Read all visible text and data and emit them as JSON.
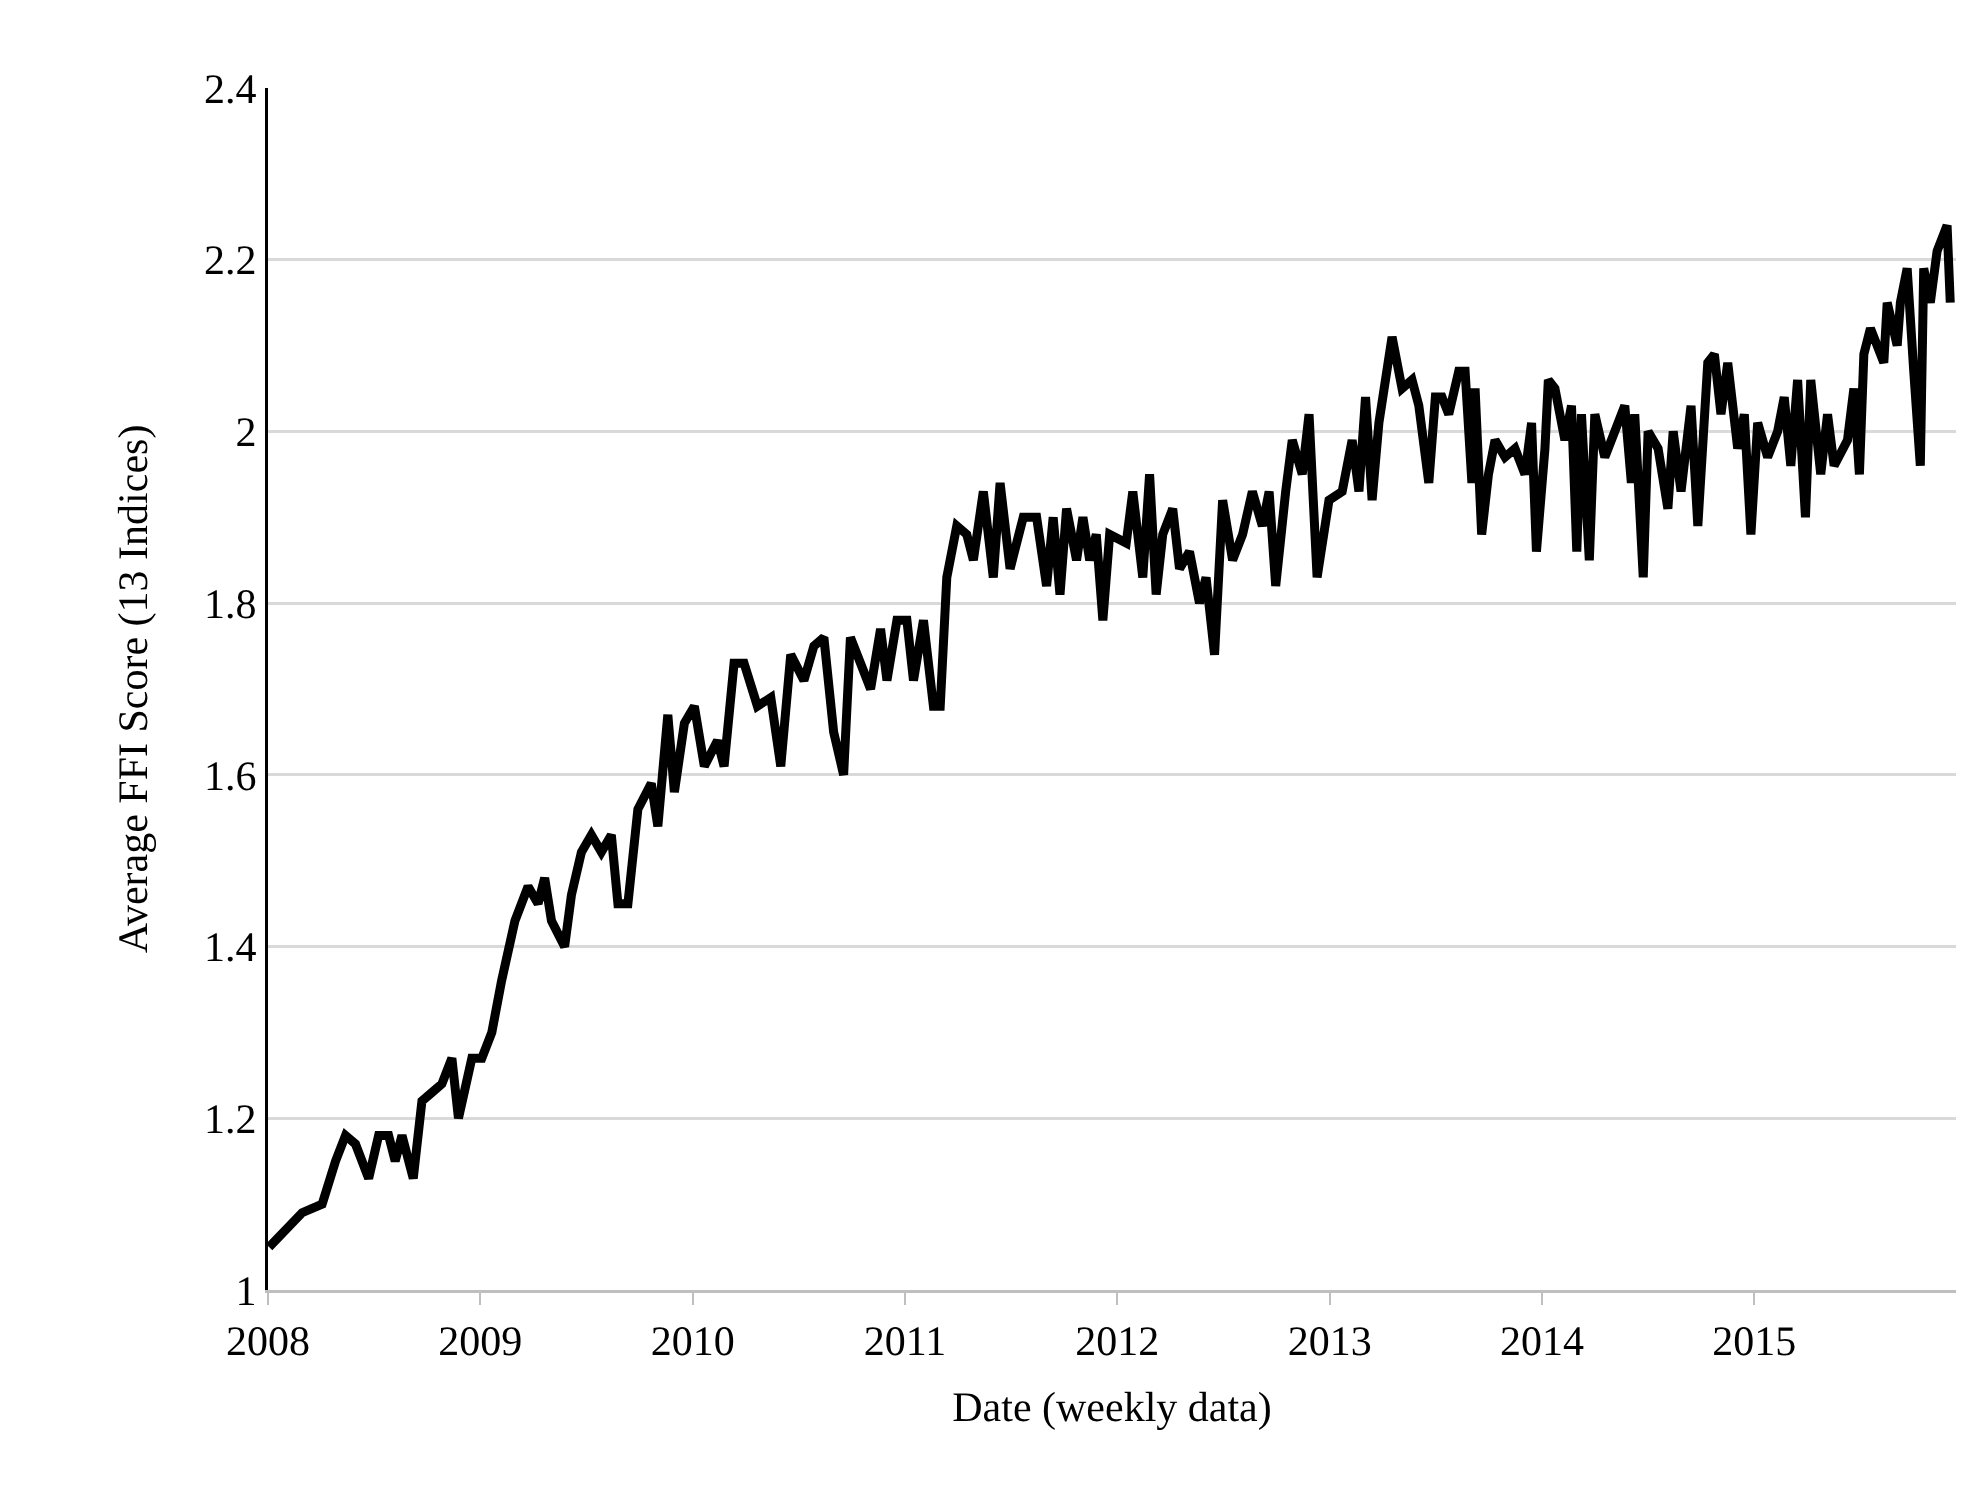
{
  "chart_data": {
    "type": "line",
    "xlabel": "Date (weekly data)",
    "ylabel": "Average FFI Score (13 Indices)",
    "x": [
      2008.005,
      2008.161,
      2008.255,
      2008.318,
      2008.365,
      2008.412,
      2008.474,
      2008.521,
      2008.568,
      2008.599,
      2008.631,
      2008.684,
      2008.725,
      2008.772,
      2008.819,
      2008.866,
      2008.897,
      2008.96,
      2009.007,
      2009.054,
      2009.1,
      2009.163,
      2009.225,
      2009.272,
      2009.303,
      2009.335,
      2009.397,
      2009.429,
      2009.476,
      2009.523,
      2009.57,
      2009.617,
      2009.648,
      2009.695,
      2009.742,
      2009.805,
      2009.836,
      2009.883,
      2009.914,
      2009.961,
      2010.008,
      2010.055,
      2010.117,
      2010.148,
      2010.195,
      2010.242,
      2010.305,
      2010.368,
      2010.415,
      2010.462,
      2010.524,
      2010.571,
      2010.618,
      2010.664,
      2010.711,
      2010.743,
      2010.838,
      2010.885,
      2010.915,
      2010.962,
      2011.009,
      2011.04,
      2011.087,
      2011.134,
      2011.166,
      2011.197,
      2011.244,
      2011.291,
      2011.322,
      2011.369,
      2011.416,
      2011.448,
      2011.495,
      2011.557,
      2011.62,
      2011.667,
      2011.698,
      2011.73,
      2011.761,
      2011.808,
      2011.838,
      2011.87,
      2011.901,
      2011.932,
      2011.964,
      2012.042,
      2012.073,
      2012.12,
      2012.152,
      2012.183,
      2012.214,
      2012.261,
      2012.293,
      2012.34,
      2012.387,
      2012.418,
      2012.458,
      2012.496,
      2012.543,
      2012.59,
      2012.636,
      2012.683,
      2012.715,
      2012.746,
      2012.793,
      2012.824,
      2012.871,
      2012.903,
      2012.941,
      2012.997,
      2013.059,
      2013.106,
      2013.138,
      2013.169,
      2013.2,
      2013.232,
      2013.294,
      2013.341,
      2013.388,
      2013.42,
      2013.467,
      2013.498,
      2013.529,
      2013.561,
      2013.608,
      2013.638,
      2013.67,
      2013.685,
      2013.716,
      2013.748,
      2013.779,
      2013.826,
      2013.873,
      2013.92,
      2013.951,
      2013.974,
      2014.014,
      2014.03,
      2014.061,
      2014.108,
      2014.139,
      2014.164,
      2014.186,
      2014.223,
      2014.249,
      2014.296,
      2014.343,
      2014.39,
      2014.421,
      2014.437,
      2014.477,
      2014.5,
      2014.547,
      2014.593,
      2014.618,
      2014.655,
      2014.702,
      2014.734,
      2014.781,
      2014.812,
      2014.843,
      2014.875,
      2014.922,
      2014.953,
      2014.984,
      2015.016,
      2015.063,
      2015.11,
      2015.141,
      2015.172,
      2015.204,
      2015.241,
      2015.266,
      2015.313,
      2015.345,
      2015.376,
      2015.439,
      2015.469,
      2015.495,
      2015.516,
      2015.547,
      2015.61,
      2015.626,
      2015.673,
      2015.688,
      2015.72,
      2015.751,
      2015.782,
      2015.798,
      2015.829,
      2015.861,
      2015.908,
      2015.923
    ],
    "series": [
      {
        "color": "#000000",
        "values": [
          1.05,
          1.09,
          1.1,
          1.15,
          1.18,
          1.17,
          1.13,
          1.18,
          1.18,
          1.15,
          1.18,
          1.13,
          1.22,
          1.23,
          1.24,
          1.27,
          1.2,
          1.27,
          1.27,
          1.3,
          1.36,
          1.43,
          1.47,
          1.45,
          1.48,
          1.43,
          1.4,
          1.46,
          1.51,
          1.53,
          1.51,
          1.53,
          1.45,
          1.45,
          1.56,
          1.59,
          1.54,
          1.67,
          1.58,
          1.66,
          1.68,
          1.61,
          1.64,
          1.61,
          1.73,
          1.73,
          1.68,
          1.69,
          1.61,
          1.74,
          1.71,
          1.75,
          1.76,
          1.65,
          1.6,
          1.76,
          1.7,
          1.77,
          1.71,
          1.78,
          1.78,
          1.71,
          1.78,
          1.68,
          1.68,
          1.83,
          1.89,
          1.88,
          1.85,
          1.93,
          1.83,
          1.94,
          1.84,
          1.9,
          1.9,
          1.82,
          1.9,
          1.81,
          1.91,
          1.85,
          1.9,
          1.85,
          1.88,
          1.78,
          1.88,
          1.87,
          1.93,
          1.83,
          1.95,
          1.81,
          1.88,
          1.91,
          1.84,
          1.86,
          1.8,
          1.83,
          1.74,
          1.92,
          1.85,
          1.88,
          1.93,
          1.89,
          1.93,
          1.82,
          1.93,
          1.99,
          1.95,
          2.02,
          1.83,
          1.92,
          1.93,
          1.99,
          1.93,
          2.04,
          1.92,
          2.01,
          2.11,
          2.05,
          2.06,
          2.03,
          1.94,
          2.04,
          2.04,
          2.02,
          2.07,
          2.07,
          1.94,
          2.05,
          1.88,
          1.95,
          1.99,
          1.97,
          1.98,
          1.95,
          2.01,
          1.86,
          1.98,
          2.06,
          2.05,
          1.99,
          2.03,
          1.86,
          2.02,
          1.85,
          2.02,
          1.97,
          2.0,
          2.03,
          1.94,
          2.02,
          1.83,
          2.0,
          1.98,
          1.91,
          2.0,
          1.93,
          2.03,
          1.89,
          2.08,
          2.09,
          2.02,
          2.08,
          1.98,
          2.02,
          1.88,
          2.01,
          1.97,
          2.0,
          2.04,
          1.96,
          2.06,
          1.9,
          2.06,
          1.95,
          2.02,
          1.96,
          1.99,
          2.05,
          1.95,
          2.09,
          2.12,
          2.08,
          2.15,
          2.1,
          2.15,
          2.19,
          2.07,
          1.96,
          2.19,
          2.15,
          2.21,
          2.24,
          2.15
        ]
      }
    ],
    "xlim": [
      2008,
      2015.95
    ],
    "xticks": [
      2008,
      2009,
      2010,
      2011,
      2012,
      2013,
      2014,
      2015
    ],
    "ylim": [
      1,
      2.4
    ],
    "yticks": [
      1,
      1.2,
      1.4,
      1.6,
      1.8,
      2,
      2.2,
      2.4
    ],
    "grid": "y",
    "marker": "none",
    "line_style": "solid"
  }
}
